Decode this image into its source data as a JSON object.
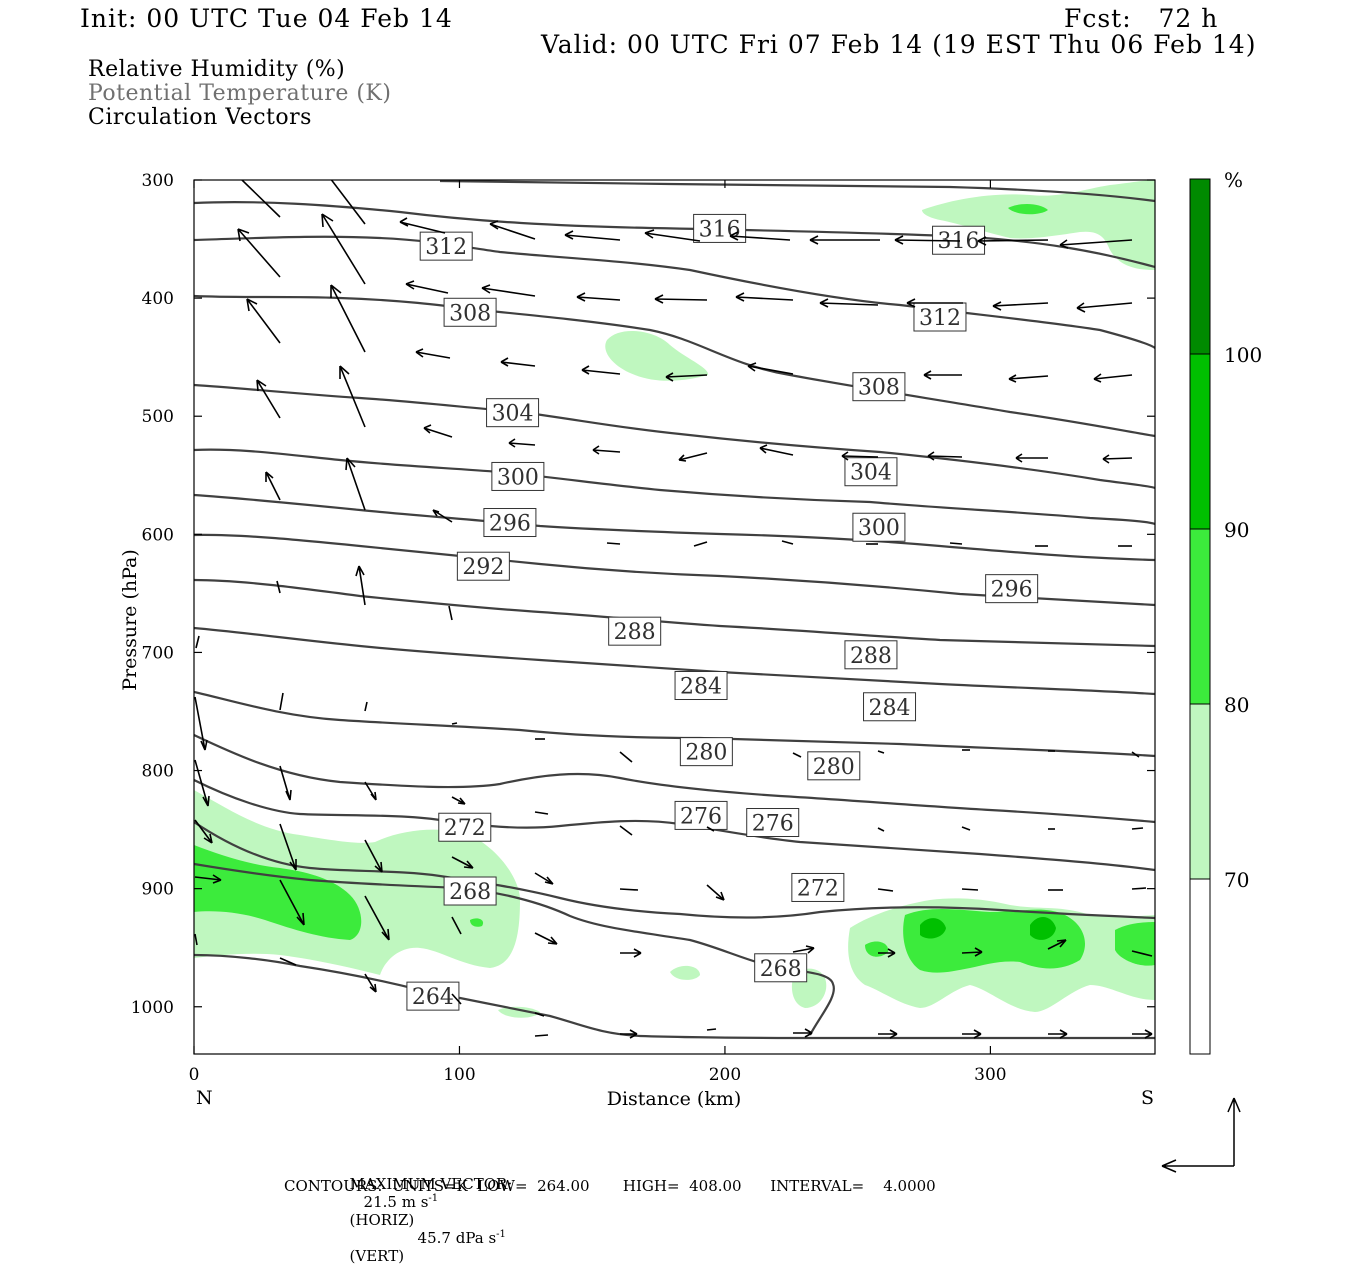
{
  "header": {
    "init": "Init: 00 UTC Tue 04 Feb 14",
    "fcst": "Fcst:   72 h",
    "valid": "Valid: 00 UTC Fri 07 Feb 14 (19 EST Thu 06 Feb 14)"
  },
  "legend_lines": [
    {
      "label": "Relative Humidity (%)",
      "color": "#000000"
    },
    {
      "label": "Potential Temperature (K)",
      "color": "#707070"
    },
    {
      "label": "Circulation Vectors",
      "color": "#000000"
    }
  ],
  "chart_data": {
    "type": "cross-section",
    "xlabel": "Distance (km)",
    "ylabel": "Pressure (hPa)",
    "x_ticks": [
      0,
      100,
      200,
      300
    ],
    "y_ticks": [
      300,
      400,
      500,
      600,
      700,
      800,
      900,
      1000
    ],
    "xlim": [
      0,
      362
    ],
    "ylim": [
      300,
      1040
    ],
    "y_reversed": true,
    "x_end_labels": {
      "left": "N",
      "right": "S"
    },
    "colorbar": {
      "unit": "%",
      "levels": [
        70,
        80,
        90,
        100
      ],
      "colors": [
        "#ffffff",
        "#bff7bf",
        "#3ceb3c",
        "#00c000",
        "#008a00"
      ]
    },
    "contour_labels": [
      {
        "value": 316,
        "x": 198,
        "p": 341
      },
      {
        "value": 316,
        "x": 288,
        "p": 351
      },
      {
        "value": 312,
        "x": 95,
        "p": 356
      },
      {
        "value": 312,
        "x": 281,
        "p": 416
      },
      {
        "value": 308,
        "x": 104,
        "p": 412
      },
      {
        "value": 308,
        "x": 258,
        "p": 475
      },
      {
        "value": 304,
        "x": 120,
        "p": 497
      },
      {
        "value": 304,
        "x": 255,
        "p": 547
      },
      {
        "value": 300,
        "x": 122,
        "p": 551
      },
      {
        "value": 300,
        "x": 258,
        "p": 594
      },
      {
        "value": 296,
        "x": 119,
        "p": 590
      },
      {
        "value": 296,
        "x": 308,
        "p": 646
      },
      {
        "value": 292,
        "x": 109,
        "p": 627
      },
      {
        "value": 288,
        "x": 166,
        "p": 682
      },
      {
        "value": 288,
        "x": 255,
        "p": 702
      },
      {
        "value": 284,
        "x": 191,
        "p": 728
      },
      {
        "value": 284,
        "x": 262,
        "p": 746
      },
      {
        "value": 280,
        "x": 193,
        "p": 784
      },
      {
        "value": 280,
        "x": 241,
        "p": 796
      },
      {
        "value": 276,
        "x": 191,
        "p": 838
      },
      {
        "value": 276,
        "x": 218,
        "p": 844
      },
      {
        "value": 272,
        "x": 102,
        "p": 848
      },
      {
        "value": 272,
        "x": 235,
        "p": 899
      },
      {
        "value": 268,
        "x": 104,
        "p": 902
      },
      {
        "value": 268,
        "x": 221,
        "p": 967
      },
      {
        "value": 264,
        "x": 90,
        "p": 991
      }
    ]
  },
  "footer": {
    "max_vector_label": "MAXIMUM VECTOR:",
    "horiz_value": "21.5 m s",
    "horiz_sup": "-1",
    "horiz_tag": "(HORIZ)",
    "vert_value": "45.7 dPa s",
    "vert_sup": "-1",
    "vert_tag": "(VERT)",
    "contours_line": "CONTOURS:  UNITS=K  LOW=  264.00       HIGH=  408.00      INTERVAL=    4.0000"
  }
}
